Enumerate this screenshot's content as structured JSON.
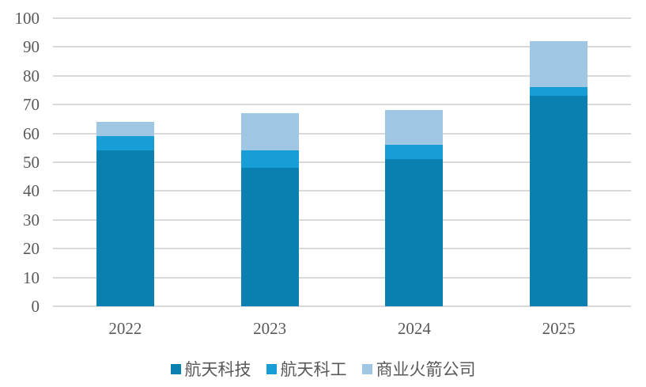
{
  "chart_data": {
    "type": "bar",
    "stacked": true,
    "title": "",
    "categories": [
      "2022",
      "2023",
      "2024",
      "2025"
    ],
    "series": [
      {
        "name": "航天科技",
        "color": "#0A80B0",
        "values": [
          54,
          48,
          51,
          73
        ]
      },
      {
        "name": "航天科工",
        "color": "#179ED6",
        "values": [
          5,
          6,
          5,
          3
        ]
      },
      {
        "name": "商业火箭公司",
        "color": "#9FC6E3",
        "values": [
          5,
          13,
          12,
          16
        ]
      }
    ],
    "totals": [
      64,
      67,
      68,
      92
    ],
    "ylim": [
      0,
      100
    ],
    "ytick_step": 10,
    "yticks": [
      0,
      10,
      20,
      30,
      40,
      50,
      60,
      70,
      80,
      90,
      100
    ],
    "grid": true,
    "legend_position": "bottom",
    "styles": {
      "text_color": "#595959",
      "gridline_color": "#D9D9D9",
      "axisline_color": "#D9D9D9",
      "background": "#FFFFFF"
    }
  }
}
